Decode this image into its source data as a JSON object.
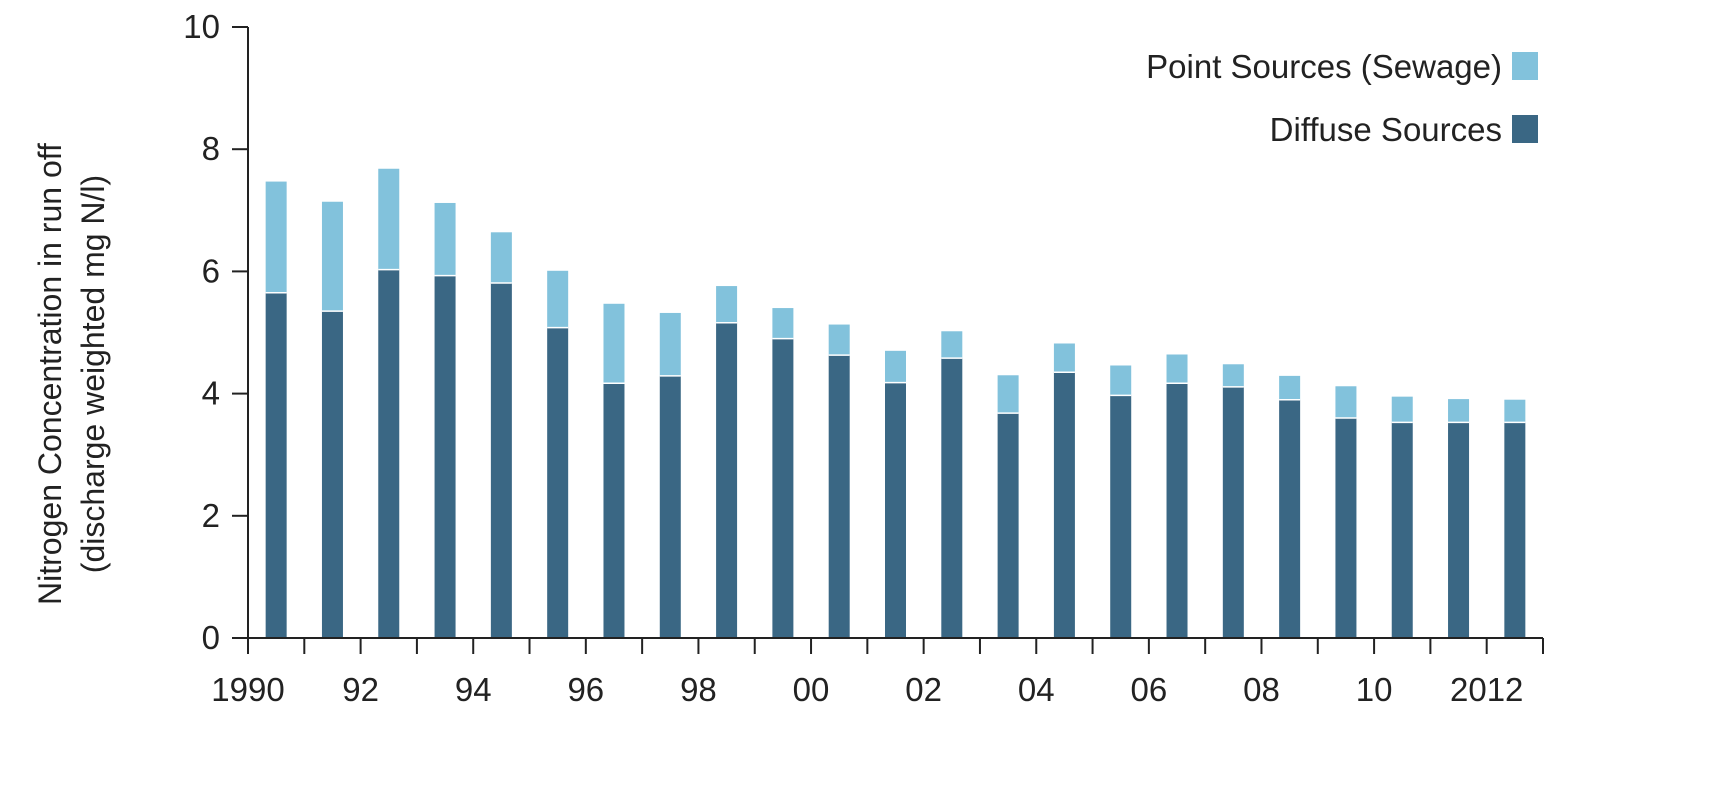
{
  "chart_data": {
    "type": "bar",
    "stacked": true,
    "categories": [
      "1990",
      "1991",
      "1992",
      "1993",
      "1994",
      "1995",
      "1996",
      "1997",
      "1998",
      "1999",
      "2000",
      "2001",
      "2002",
      "2003",
      "2004",
      "2005",
      "2006",
      "2007",
      "2008",
      "2009",
      "2010",
      "2011",
      "2012"
    ],
    "x_tick_labels": [
      "1990",
      "92",
      "94",
      "96",
      "98",
      "00",
      "02",
      "04",
      "06",
      "08",
      "10",
      "2012"
    ],
    "series": [
      {
        "name": "Diffuse Sources",
        "color": "#3a6784",
        "values": [
          5.65,
          5.35,
          6.03,
          5.93,
          5.81,
          5.08,
          4.17,
          4.29,
          5.16,
          4.9,
          4.63,
          4.18,
          4.58,
          3.68,
          4.35,
          3.97,
          4.17,
          4.11,
          3.9,
          3.6,
          3.53,
          3.53,
          3.53
        ]
      },
      {
        "name": "Point Sources (Sewage)",
        "color": "#82c2dc",
        "values": [
          1.82,
          1.79,
          1.65,
          1.19,
          0.83,
          0.93,
          1.3,
          1.03,
          0.6,
          0.5,
          0.5,
          0.52,
          0.44,
          0.62,
          0.47,
          0.49,
          0.47,
          0.37,
          0.39,
          0.52,
          0.42,
          0.38,
          0.37
        ]
      }
    ],
    "y_ticks": [
      "0",
      "2",
      "4",
      "6",
      "8",
      "10"
    ],
    "ylim": [
      0,
      10
    ],
    "ylabel_line1": "Nitrogen Concentration in run off",
    "ylabel_line2": "(discharge weighted mg N/l)",
    "xlabel": "",
    "legend": {
      "placement": "top-right",
      "entries": [
        "Point Sources (Sewage)",
        "Diffuse Sources"
      ]
    },
    "grid": false
  }
}
